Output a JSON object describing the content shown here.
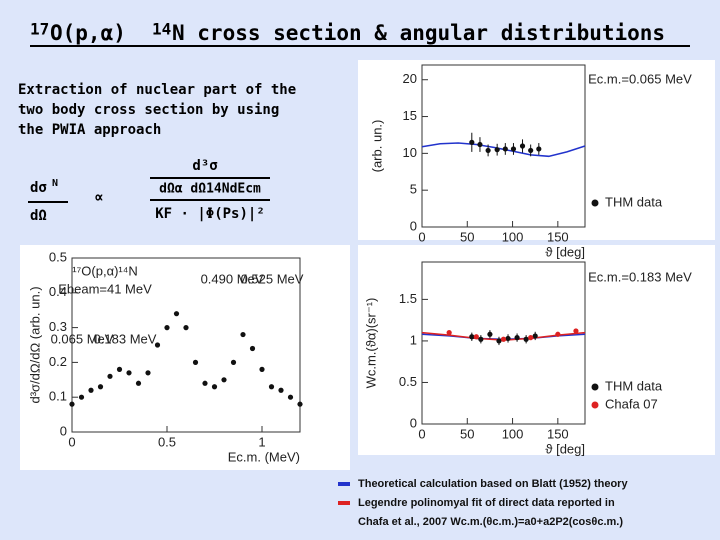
{
  "title": {
    "mass_a": "17",
    "part_a": "O(p,α)",
    "mass_b": "14",
    "part_b": "N cross section & angular distributions"
  },
  "intro": [
    "Extraction of nuclear part of the",
    "two body cross section  by using",
    "the PWIA approach"
  ],
  "formula": {
    "lhs_num": "dσ",
    "lhs_sup": "N",
    "lhs_den": "dΩ",
    "prop": "∝",
    "num": "d³σ",
    "den": "dΩα dΩ14NdEcm",
    "factor": "KF · |Φ(Ps)|²"
  },
  "chart_data": [
    {
      "type": "scatter",
      "ylabel": "(arb. un.)",
      "xlabel": "ϑ [deg]",
      "annotations": [
        "Ec.m.=0.065 MeV"
      ],
      "xlim": [
        0,
        180
      ],
      "ylim": [
        0,
        22
      ],
      "xticks": [
        0,
        50,
        100,
        150
      ],
      "yticks": [
        0,
        5,
        10,
        15,
        20
      ],
      "legend": "lower right",
      "series": [
        {
          "style": "line",
          "color": "#2233cc",
          "x": [
            0,
            20,
            40,
            60,
            80,
            100,
            120,
            140,
            160,
            180
          ],
          "values": [
            10.9,
            11.3,
            11.4,
            11.2,
            10.8,
            10.3,
            9.8,
            9.6,
            10.2,
            11.0
          ]
        },
        {
          "name": "THM data",
          "style": "markers",
          "color": "#111111",
          "x": [
            55,
            64,
            73,
            83,
            92,
            101,
            111,
            120,
            129
          ],
          "values": [
            11.5,
            11.2,
            10.4,
            10.5,
            10.6,
            10.6,
            11.0,
            10.4,
            10.6
          ],
          "errors": [
            1.3,
            1.0,
            0.8,
            0.8,
            0.8,
            0.8,
            0.9,
            0.8,
            0.8
          ]
        }
      ]
    },
    {
      "type": "scatter",
      "ylabel": "Wc.m.(ϑα)(sr⁻¹)",
      "xlabel": "ϑ [deg]",
      "annotations": [
        "Ec.m.=0.183 MeV"
      ],
      "xlim": [
        0,
        180
      ],
      "ylim": [
        0,
        1.95
      ],
      "xticks": [
        0,
        50,
        100,
        150
      ],
      "yticks": [
        0,
        0.5,
        1,
        1.5
      ],
      "legend": "lower right",
      "series": [
        {
          "style": "line",
          "color": "#2233cc",
          "x": [
            0,
            30,
            60,
            90,
            120,
            150,
            180
          ],
          "values": [
            1.08,
            1.06,
            1.03,
            1.02,
            1.03,
            1.06,
            1.08
          ]
        },
        {
          "style": "line",
          "color": "#dd2222",
          "x": [
            0,
            30,
            60,
            90,
            120,
            150,
            180
          ],
          "values": [
            1.1,
            1.07,
            1.03,
            1.01,
            1.03,
            1.07,
            1.1
          ]
        },
        {
          "name": "THM data",
          "style": "markers",
          "color": "#111111",
          "x": [
            55,
            65,
            75,
            85,
            95,
            105,
            115,
            125
          ],
          "values": [
            1.05,
            1.02,
            1.08,
            1.0,
            1.03,
            1.04,
            1.02,
            1.06
          ],
          "errors": [
            0.05,
            0.05,
            0.05,
            0.05,
            0.05,
            0.05,
            0.05,
            0.05
          ]
        },
        {
          "name": "Chafa 07",
          "style": "markers",
          "color": "#dd2222",
          "x": [
            30,
            60,
            90,
            120,
            150,
            170
          ],
          "values": [
            1.1,
            1.05,
            1.02,
            1.04,
            1.08,
            1.12
          ]
        }
      ]
    },
    {
      "type": "scatter",
      "ylabel": "d³σ/dΩ/dΩ (arb. un.)",
      "xlabel": "Ec.m. (MeV)",
      "annotations": [
        "¹⁷O(p,α)¹⁴N",
        "Ebeam=41 MeV",
        "0.065 MeV",
        "0.183 MeV",
        "0.490 MeV",
        "0.525 MeV"
      ],
      "xlim": [
        0,
        1.2
      ],
      "ylim": [
        0,
        0.5
      ],
      "xticks": [
        0,
        0.5,
        1
      ],
      "yticks": [
        0,
        0.1,
        0.2,
        0.3,
        0.4,
        0.5
      ],
      "series": [
        {
          "style": "markers",
          "color": "#111111",
          "x": [
            0,
            0.05,
            0.1,
            0.15,
            0.2,
            0.25,
            0.3,
            0.35,
            0.4,
            0.45,
            0.5,
            0.55,
            0.6,
            0.65,
            0.7,
            0.75,
            0.8,
            0.85,
            0.9,
            0.95,
            1.0,
            1.05,
            1.1,
            1.15,
            1.2
          ],
          "values": [
            0.08,
            0.1,
            0.12,
            0.13,
            0.16,
            0.18,
            0.17,
            0.14,
            0.17,
            0.25,
            0.3,
            0.34,
            0.3,
            0.2,
            0.14,
            0.13,
            0.15,
            0.2,
            0.28,
            0.24,
            0.18,
            0.13,
            0.12,
            0.1,
            0.08
          ]
        }
      ]
    }
  ],
  "bottom_legend": [
    {
      "text": "Theoretical calculation based  on Blatt (1952) theory",
      "color": "#2233cc"
    },
    {
      "text": "Legendre polinomyal fit of direct data reported in",
      "color": "#dd2222"
    },
    {
      "text": "Chafa et al., 2007 Wc.m.(θc.m.)=a0+a2P2(cosθc.m.)"
    }
  ]
}
